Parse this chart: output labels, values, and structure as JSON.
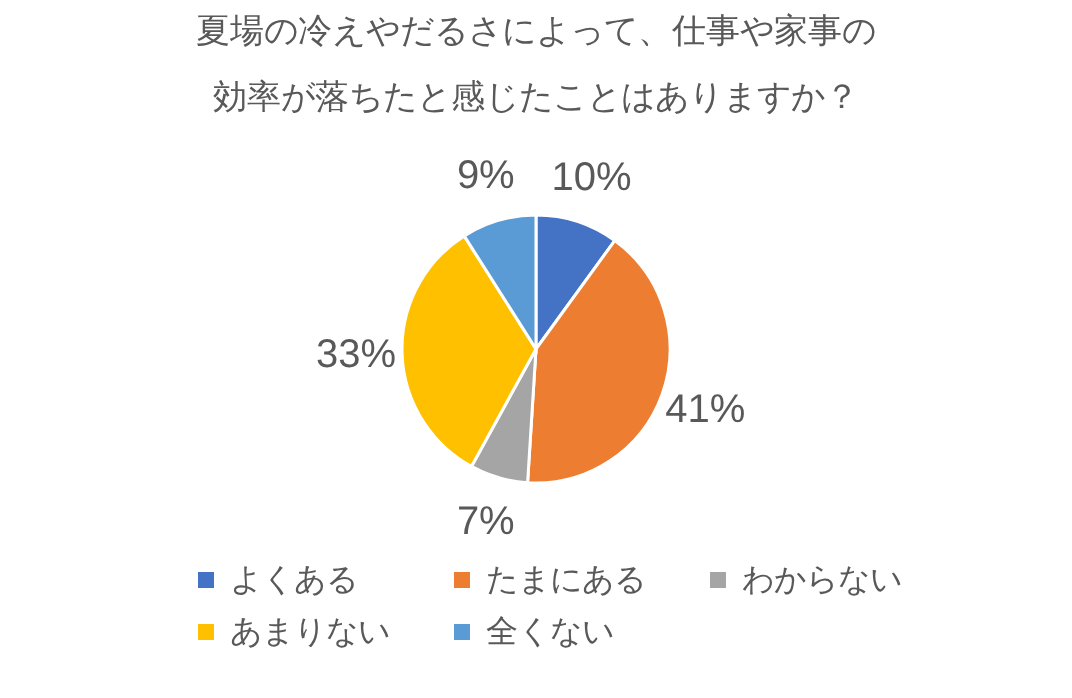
{
  "chart_data": {
    "type": "pie",
    "title": "夏場の冷えやだるさによって、仕事や家事の効率が落ちたと感じたことはありますか？",
    "categories": [
      "よくある",
      "たまにある",
      "わからない",
      "あまりない",
      "全くない"
    ],
    "values": [
      10,
      41,
      7,
      33,
      9
    ],
    "value_labels": [
      "10%",
      "41%",
      "7%",
      "33%",
      "9%"
    ],
    "colors": [
      "#4472c4",
      "#ed7d31",
      "#a5a5a5",
      "#ffc000",
      "#5b9bd5"
    ],
    "legend": "bottom"
  }
}
